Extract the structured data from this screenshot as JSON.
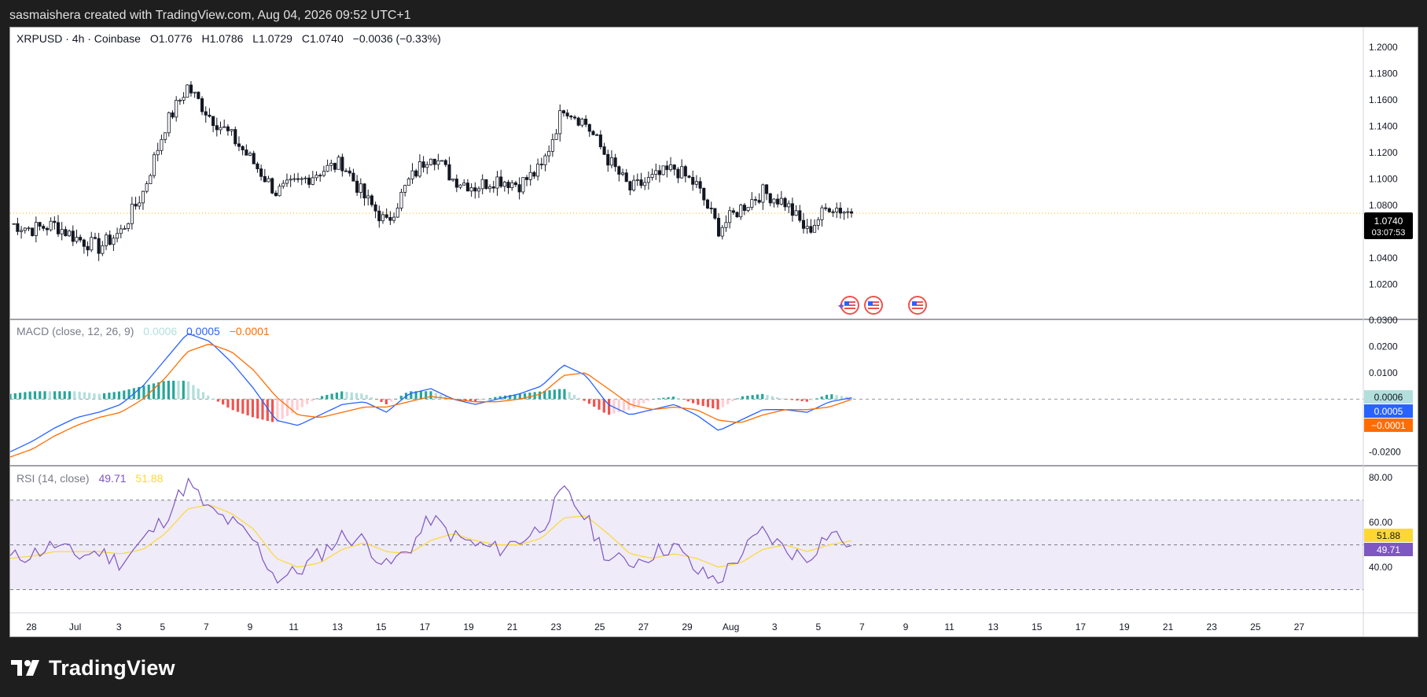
{
  "header": {
    "text": "sasmaishera created with TradingView.com, Aug 04, 2026 09:52 UTC+1"
  },
  "footer": {
    "brand": "TradingView"
  },
  "colors": {
    "up": "#26a69a",
    "down": "#ef5350",
    "macd": "#2962ff",
    "signal": "#ff6d00",
    "rsi": "#7e57c2",
    "rsi_ma": "#fdd835",
    "price_tag": "#000000",
    "ohlc_value": "#131722",
    "ohlc_label": "#787b86"
  },
  "legend": {
    "symbol": "XRPUSD · 4h · Coinbase",
    "o_label": "O",
    "o": "1.0776",
    "h_label": "H",
    "h": "1.0786",
    "l_label": "L",
    "l": "1.0729",
    "c_label": "C",
    "c": "1.0740",
    "change": "−0.0036 (−0.33%)"
  },
  "price_tag": {
    "value": "1.0740",
    "countdown": "03:07:53"
  },
  "macd_legend": {
    "title": "MACD (close, 12, 26, 9)",
    "hist": "0.0006",
    "macd": "0.0005",
    "signal": "−0.0001"
  },
  "rsi_legend": {
    "title": "RSI (14, close)",
    "rsi": "49.71",
    "ma": "51.88"
  },
  "event_icons": [
    "us-flag-icon",
    "us-flag-icon",
    "us-flag-icon"
  ],
  "chart_data": [
    {
      "type": "candlestick",
      "title": "XRPUSD · 4h · Coinbase",
      "xlabel": "",
      "ylabel": "",
      "ylim": [
        1.0,
        1.21
      ],
      "y_ticks": [
        "1.2000",
        "1.1800",
        "1.1600",
        "1.1400",
        "1.1200",
        "1.1000",
        "1.0800",
        "1.0600",
        "1.0400",
        "1.0200"
      ],
      "x_ticks": [
        "28",
        "Jul",
        "3",
        "5",
        "7",
        "9",
        "11",
        "13",
        "15",
        "17",
        "19",
        "21",
        "23",
        "25",
        "27",
        "29",
        "Aug",
        "3",
        "5",
        "7",
        "9",
        "11",
        "13",
        "15",
        "17",
        "19",
        "21",
        "23",
        "25",
        "27"
      ],
      "last_price": 1.074,
      "close_path": [
        [
          "Jun 27",
          1.066
        ],
        [
          "Jun 28",
          1.062
        ],
        [
          "Jun 29",
          1.065
        ],
        [
          "Jun 30",
          1.055
        ],
        [
          "Jul 1",
          1.048
        ],
        [
          "Jul 2",
          1.06
        ],
        [
          "Jul 3",
          1.09
        ],
        [
          "Jul 4",
          1.14
        ],
        [
          "Jul 5",
          1.17
        ],
        [
          "Jul 6",
          1.148
        ],
        [
          "Jul 7",
          1.132
        ],
        [
          "Jul 8",
          1.112
        ],
        [
          "Jul 9",
          1.09
        ],
        [
          "Jul 10",
          1.097
        ],
        [
          "Jul 11",
          1.106
        ],
        [
          "Jul 12",
          1.112
        ],
        [
          "Jul 13",
          1.086
        ],
        [
          "Jul 14",
          1.066
        ],
        [
          "Jul 15",
          1.098
        ],
        [
          "Jul 16",
          1.12
        ],
        [
          "Jul 17",
          1.1
        ],
        [
          "Jul 18",
          1.094
        ],
        [
          "Jul 19",
          1.1
        ],
        [
          "Jul 20",
          1.096
        ],
        [
          "Jul 21",
          1.108
        ],
        [
          "Jul 22",
          1.155
        ],
        [
          "Jul 23",
          1.142
        ],
        [
          "Jul 24",
          1.115
        ],
        [
          "Jul 25",
          1.092
        ],
        [
          "Jul 26",
          1.1
        ],
        [
          "Jul 27",
          1.108
        ],
        [
          "Jul 28",
          1.095
        ],
        [
          "Jul 29",
          1.062
        ],
        [
          "Jul 30",
          1.078
        ],
        [
          "Jul 31",
          1.09
        ],
        [
          "Aug 1",
          1.082
        ],
        [
          "Aug 2",
          1.06
        ],
        [
          "Aug 3",
          1.08
        ],
        [
          "Aug 4",
          1.074
        ]
      ]
    },
    {
      "type": "line",
      "title": "MACD (close, 12, 26, 9)",
      "ylim": [
        -0.025,
        0.03
      ],
      "y_ticks": [
        "0.0300",
        "0.0200",
        "0.0100",
        "-0.0200"
      ],
      "series": [
        {
          "name": "MACD",
          "values": [
            -0.02,
            -0.016,
            -0.011,
            -0.007,
            -0.005,
            -0.002,
            0.005,
            0.015,
            0.025,
            0.022,
            0.014,
            0.004,
            -0.008,
            -0.01,
            -0.006,
            -0.002,
            -0.001,
            -0.005,
            0.002,
            0.004,
            0.0,
            -0.002,
            0.0,
            0.002,
            0.005,
            0.013,
            0.009,
            -0.002,
            -0.006,
            -0.004,
            -0.002,
            -0.006,
            -0.012,
            -0.008,
            -0.004,
            -0.004,
            -0.005,
            -0.001,
            0.0005
          ]
        },
        {
          "name": "Signal",
          "values": [
            -0.022,
            -0.019,
            -0.014,
            -0.01,
            -0.007,
            -0.005,
            0.0,
            0.008,
            0.018,
            0.021,
            0.018,
            0.011,
            0.001,
            -0.006,
            -0.007,
            -0.005,
            -0.003,
            -0.003,
            -0.001,
            0.001,
            0.0,
            -0.001,
            -0.001,
            0.0,
            0.002,
            0.009,
            0.01,
            0.004,
            -0.002,
            -0.004,
            -0.003,
            -0.004,
            -0.008,
            -0.009,
            -0.006,
            -0.004,
            -0.004,
            -0.003,
            -0.0001
          ]
        }
      ]
    },
    {
      "type": "line",
      "title": "RSI (14, close)",
      "ylim": [
        20,
        85
      ],
      "y_ticks": [
        "80.00",
        "60.00",
        "40.00"
      ],
      "bands": [
        30,
        70
      ],
      "series": [
        {
          "name": "RSI",
          "values": [
            44,
            46,
            50,
            45,
            47,
            42,
            52,
            62,
            78,
            65,
            60,
            52,
            35,
            38,
            46,
            54,
            52,
            40,
            48,
            62,
            54,
            50,
            48,
            52,
            58,
            74,
            62,
            44,
            42,
            46,
            50,
            38,
            34,
            46,
            56,
            48,
            44,
            56,
            49.71
          ]
        },
        {
          "name": "RSI MA",
          "values": [
            44,
            45,
            47,
            47,
            47,
            46,
            48,
            55,
            66,
            68,
            64,
            57,
            44,
            40,
            42,
            48,
            51,
            47,
            46,
            52,
            55,
            52,
            50,
            50,
            53,
            62,
            63,
            55,
            46,
            44,
            46,
            44,
            40,
            42,
            48,
            50,
            47,
            50,
            51.88
          ]
        }
      ]
    }
  ]
}
